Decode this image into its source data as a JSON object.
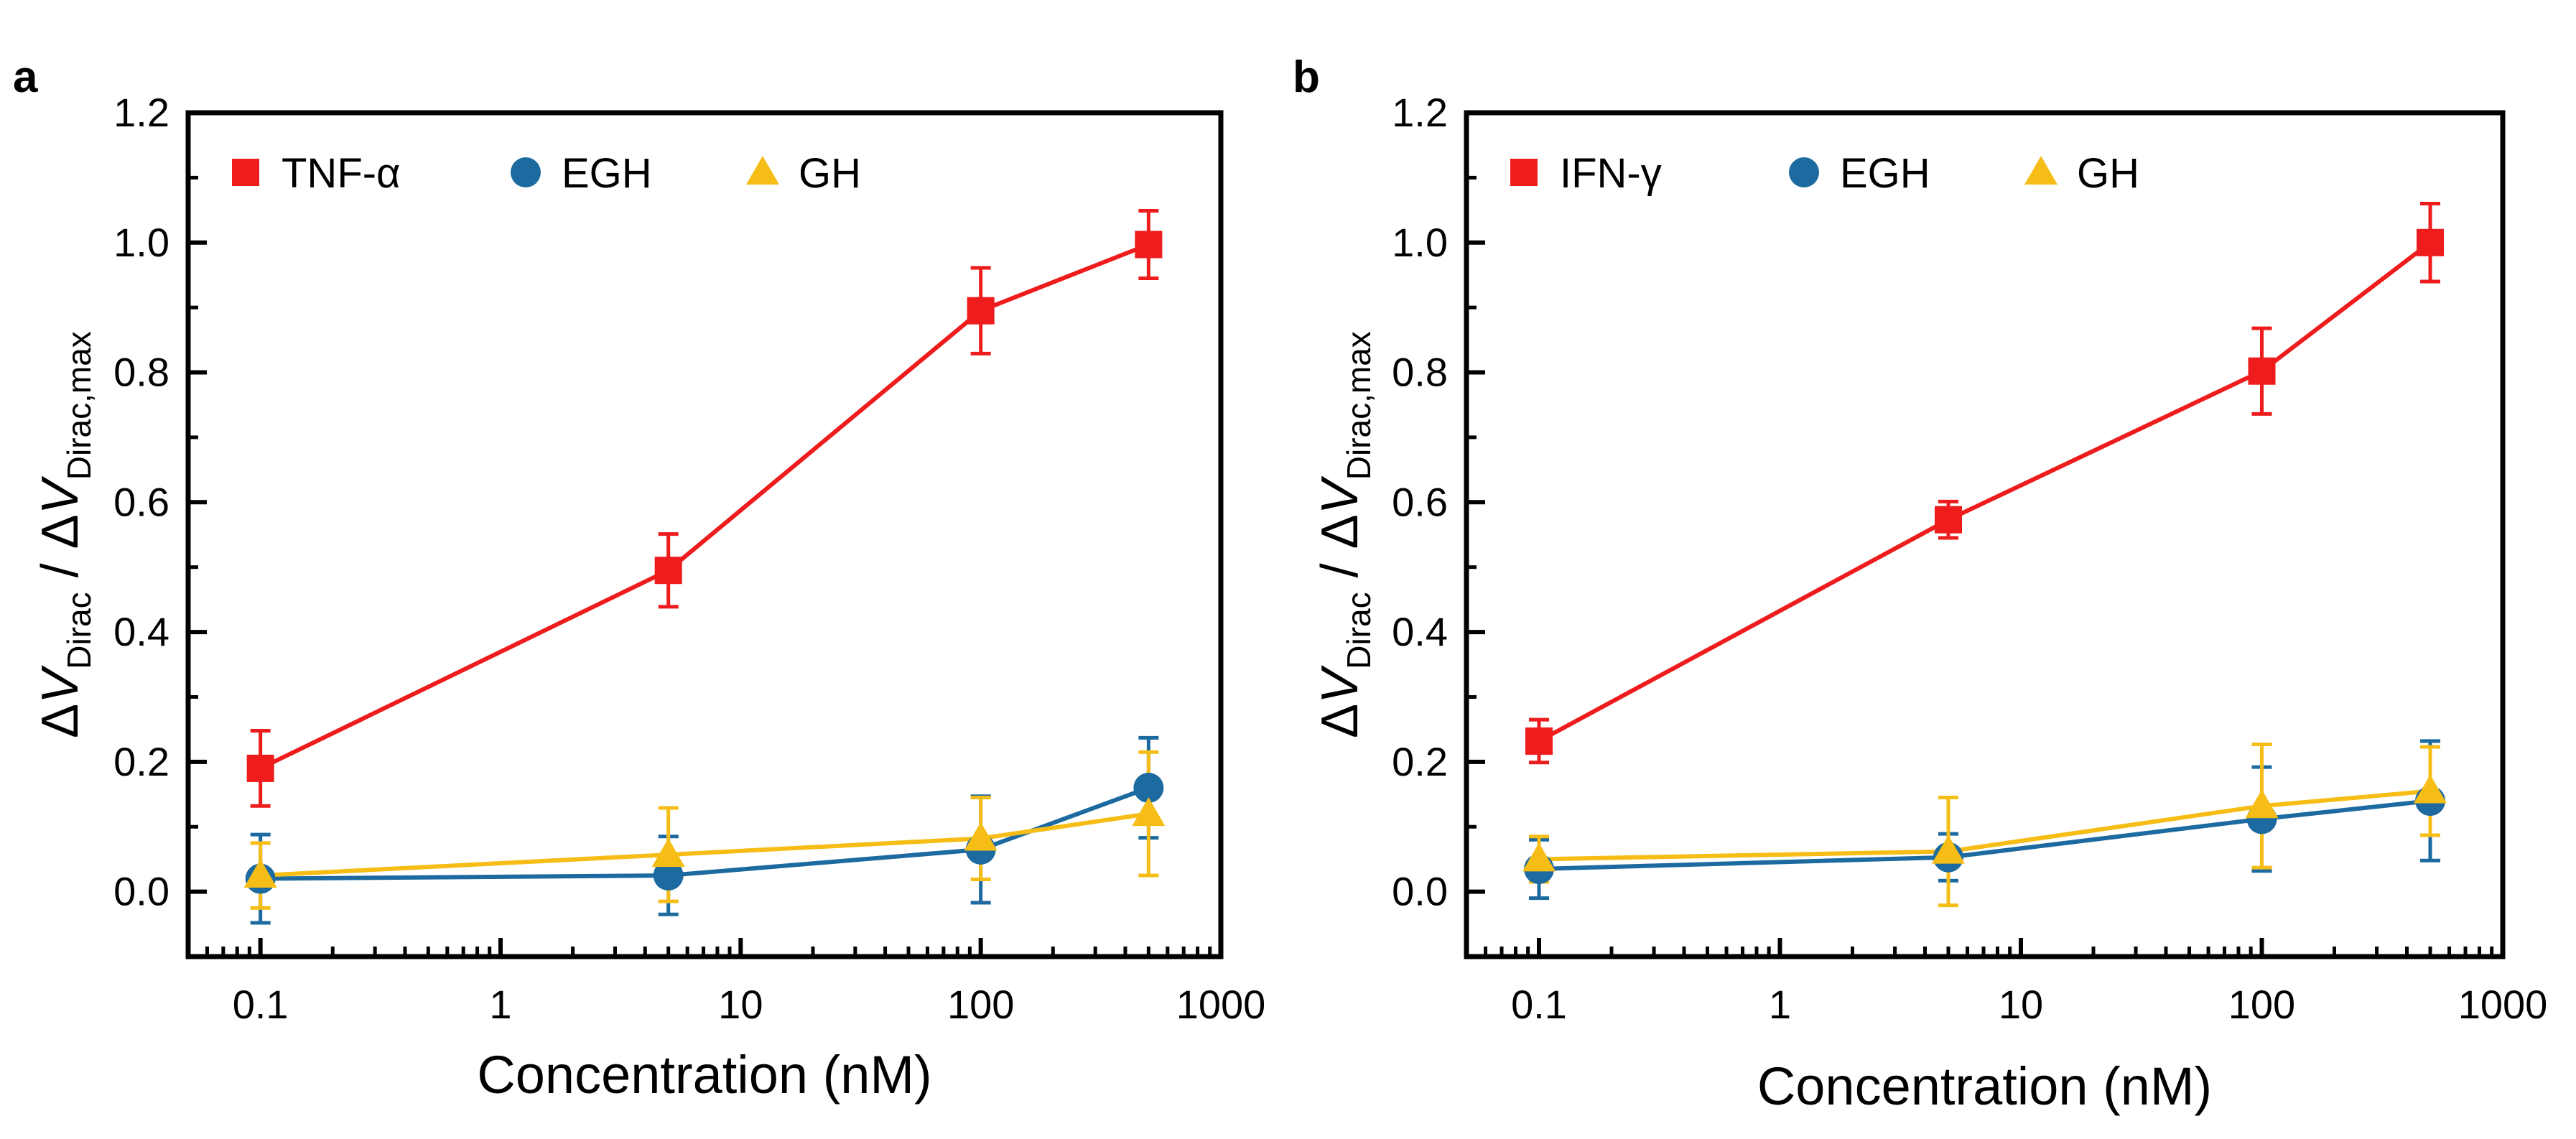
{
  "chart_data": [
    {
      "type": "line",
      "panel_label": "a",
      "xlabel": "Concentration (nM)",
      "ylabel": {
        "delta1": "Δ",
        "v1": "V",
        "sub1": "Dirac",
        "slash": " / ",
        "delta2": "Δ",
        "v2": "V",
        "sub2": "Dirac,max"
      },
      "xscale": "log",
      "xlim": [
        0.05,
        1000
      ],
      "ylim": [
        -0.1,
        1.2
      ],
      "xticks": [
        0.1,
        1,
        10,
        100,
        1000
      ],
      "xtick_labels": [
        "0.1",
        "1",
        "10",
        "100",
        "1000"
      ],
      "yticks": [
        0.0,
        0.2,
        0.4,
        0.6,
        0.8,
        1.0,
        1.2
      ],
      "ytick_labels": [
        "0.0",
        "0.2",
        "0.4",
        "0.6",
        "0.8",
        "1.0",
        "1.2"
      ],
      "legend_position": "top",
      "series": [
        {
          "name": "TNF-α",
          "marker": "square",
          "color": "#ee1c1c",
          "x": [
            0.1,
            5,
            100,
            500
          ],
          "y": [
            0.19,
            0.495,
            0.895,
            0.997
          ],
          "err": [
            0.058,
            0.056,
            0.066,
            0.052
          ]
        },
        {
          "name": "EGH",
          "marker": "circle",
          "color": "#1c6aa0",
          "x": [
            0.1,
            5,
            100,
            500
          ],
          "y": [
            0.02,
            0.025,
            0.065,
            0.16
          ],
          "err": [
            0.068,
            0.06,
            0.082,
            0.077
          ]
        },
        {
          "name": "GH",
          "marker": "triangle",
          "color": "#f5bd15",
          "x": [
            0.1,
            5,
            100,
            500
          ],
          "y": [
            0.025,
            0.057,
            0.082,
            0.12
          ],
          "err": [
            0.05,
            0.072,
            0.063,
            0.095
          ]
        }
      ]
    },
    {
      "type": "line",
      "panel_label": "b",
      "xlabel": "Concentration (nM)",
      "ylabel": {
        "delta1": "Δ",
        "v1": "V",
        "sub1": "Dirac",
        "slash": " / ",
        "delta2": "Δ",
        "v2": "V",
        "sub2": "Dirac,max"
      },
      "xscale": "log",
      "xlim": [
        0.05,
        1000
      ],
      "ylim": [
        -0.1,
        1.2
      ],
      "xticks": [
        0.1,
        1,
        10,
        100,
        1000
      ],
      "xtick_labels": [
        "0.1",
        "1",
        "10",
        "100",
        "1000"
      ],
      "yticks": [
        0.0,
        0.2,
        0.4,
        0.6,
        0.8,
        1.0,
        1.2
      ],
      "ytick_labels": [
        "0.0",
        "0.2",
        "0.4",
        "0.6",
        "0.8",
        "1.0",
        "1.2"
      ],
      "legend_position": "top",
      "series": [
        {
          "name": "IFN-γ",
          "marker": "square",
          "color": "#ee1c1c",
          "x": [
            0.1,
            5,
            100,
            500
          ],
          "y": [
            0.232,
            0.573,
            0.802,
            1.0
          ],
          "err": [
            0.033,
            0.028,
            0.066,
            0.06
          ]
        },
        {
          "name": "EGH",
          "marker": "circle",
          "color": "#1c6aa0",
          "x": [
            0.1,
            5,
            100,
            500
          ],
          "y": [
            0.035,
            0.053,
            0.112,
            0.14
          ],
          "err": [
            0.045,
            0.036,
            0.08,
            0.092
          ]
        },
        {
          "name": "GH",
          "marker": "triangle",
          "color": "#f5bd15",
          "x": [
            0.1,
            5,
            100,
            500
          ],
          "y": [
            0.05,
            0.062,
            0.132,
            0.155
          ],
          "err": [
            0.035,
            0.083,
            0.095,
            0.068
          ]
        }
      ]
    }
  ]
}
